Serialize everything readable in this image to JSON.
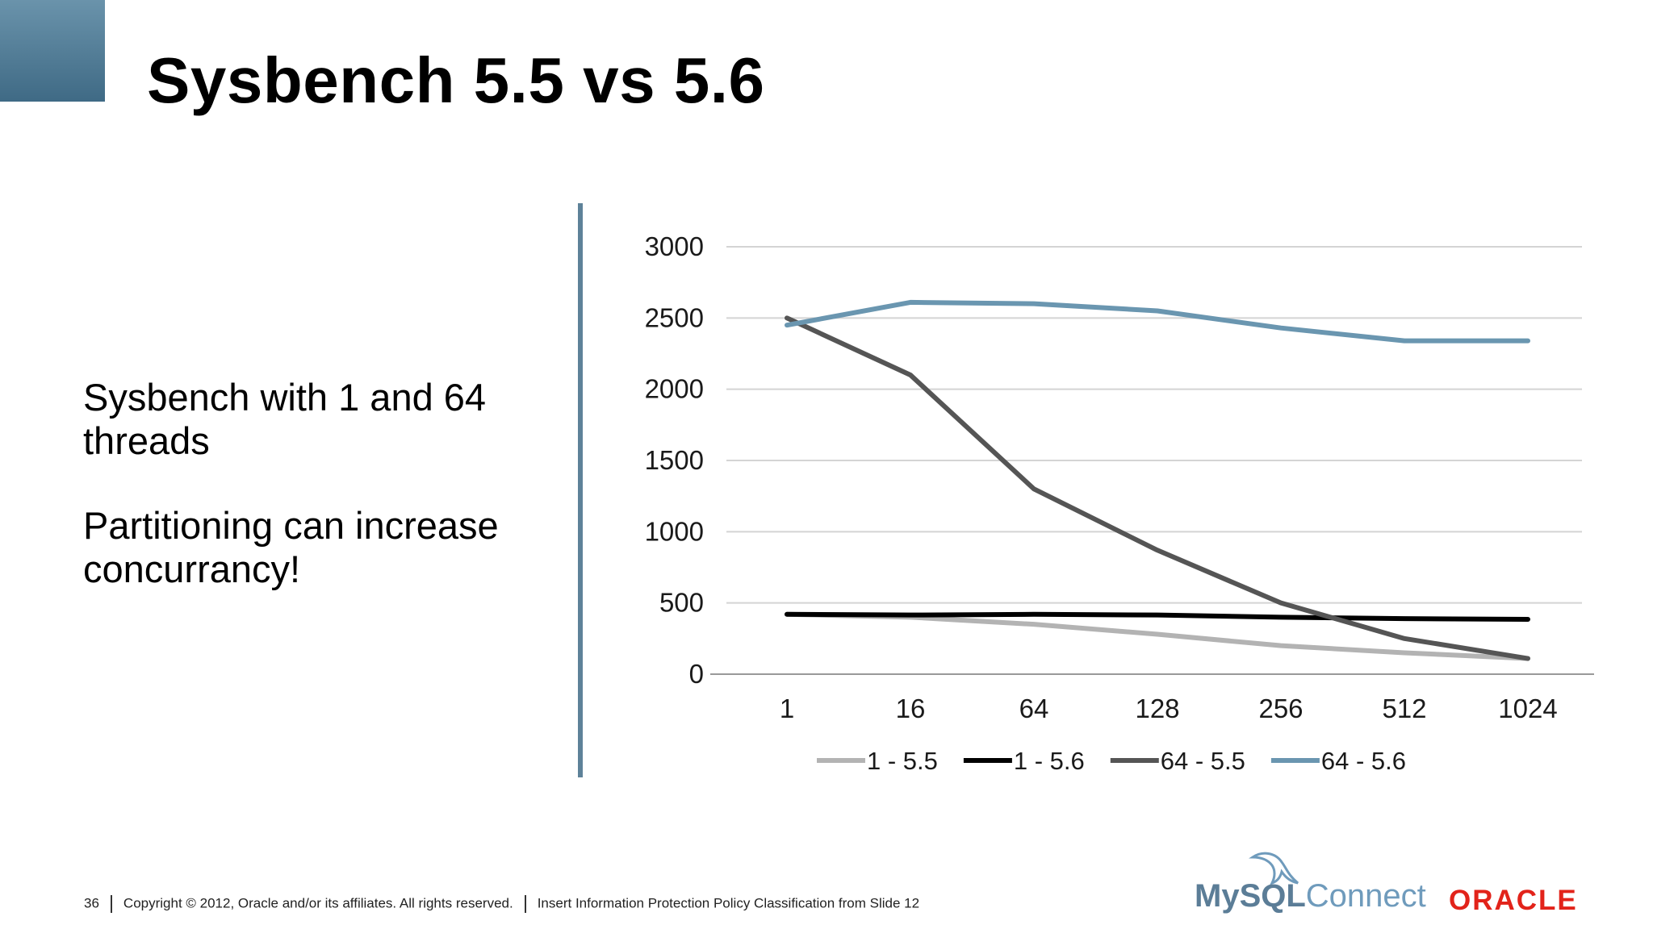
{
  "slide": {
    "title": "Sysbench 5.5 vs 5.6",
    "bullets": [
      "Sysbench with 1 and 64 threads",
      "Partitioning can increase concurrancy!"
    ]
  },
  "footer": {
    "page_number": "36",
    "copyright": "Copyright © 2012, Oracle and/or its affiliates. All rights reserved.",
    "classification": "Insert Information Protection Policy Classification from Slide 12"
  },
  "logos": {
    "mysql_prefix": "MySQL",
    "mysql_suffix": "Connect",
    "oracle": "ORACLE"
  },
  "chart_data": {
    "type": "line",
    "title": "",
    "xlabel": "",
    "ylabel": "",
    "categories": [
      "1",
      "16",
      "64",
      "128",
      "256",
      "512",
      "1024"
    ],
    "ylim": [
      0,
      3000
    ],
    "yticks": [
      0,
      500,
      1000,
      1500,
      2000,
      2500,
      3000
    ],
    "grid": true,
    "legend": "bottom",
    "series": [
      {
        "name": "1 - 5.5",
        "color": "#b3b3b3",
        "values": [
          420,
          400,
          350,
          280,
          200,
          150,
          110
        ]
      },
      {
        "name": "1 - 5.6",
        "color": "#000000",
        "values": [
          420,
          415,
          420,
          415,
          400,
          390,
          385
        ]
      },
      {
        "name": "64 - 5.5",
        "color": "#555555",
        "values": [
          2500,
          2100,
          1300,
          870,
          500,
          250,
          110
        ]
      },
      {
        "name": "64 - 5.6",
        "color": "#6a96b0",
        "values": [
          2450,
          2610,
          2600,
          2550,
          2430,
          2340,
          2340
        ]
      }
    ]
  }
}
